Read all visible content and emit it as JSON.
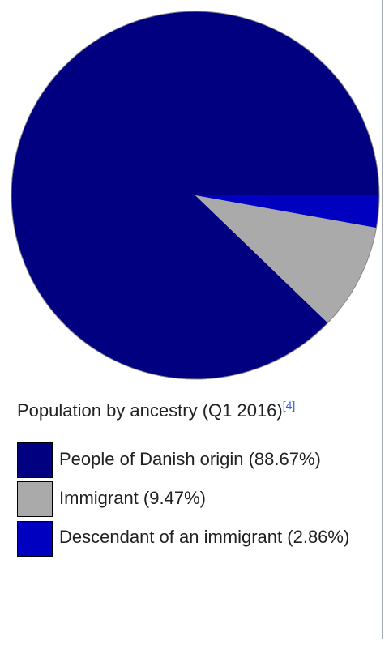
{
  "chart_data": {
    "type": "pie",
    "title": "Population by ancestry (Q1 2016)",
    "citation": "[4]",
    "categories": [
      "People of Danish origin",
      "Immigrant",
      "Descendant of an immigrant"
    ],
    "values": [
      88.67,
      9.47,
      2.86
    ],
    "value_labels": [
      "(88.67%)",
      "(9.47%)",
      "(2.86%)"
    ],
    "colors": [
      "#000080",
      "#aaaaaa",
      "#0000c0"
    ]
  }
}
